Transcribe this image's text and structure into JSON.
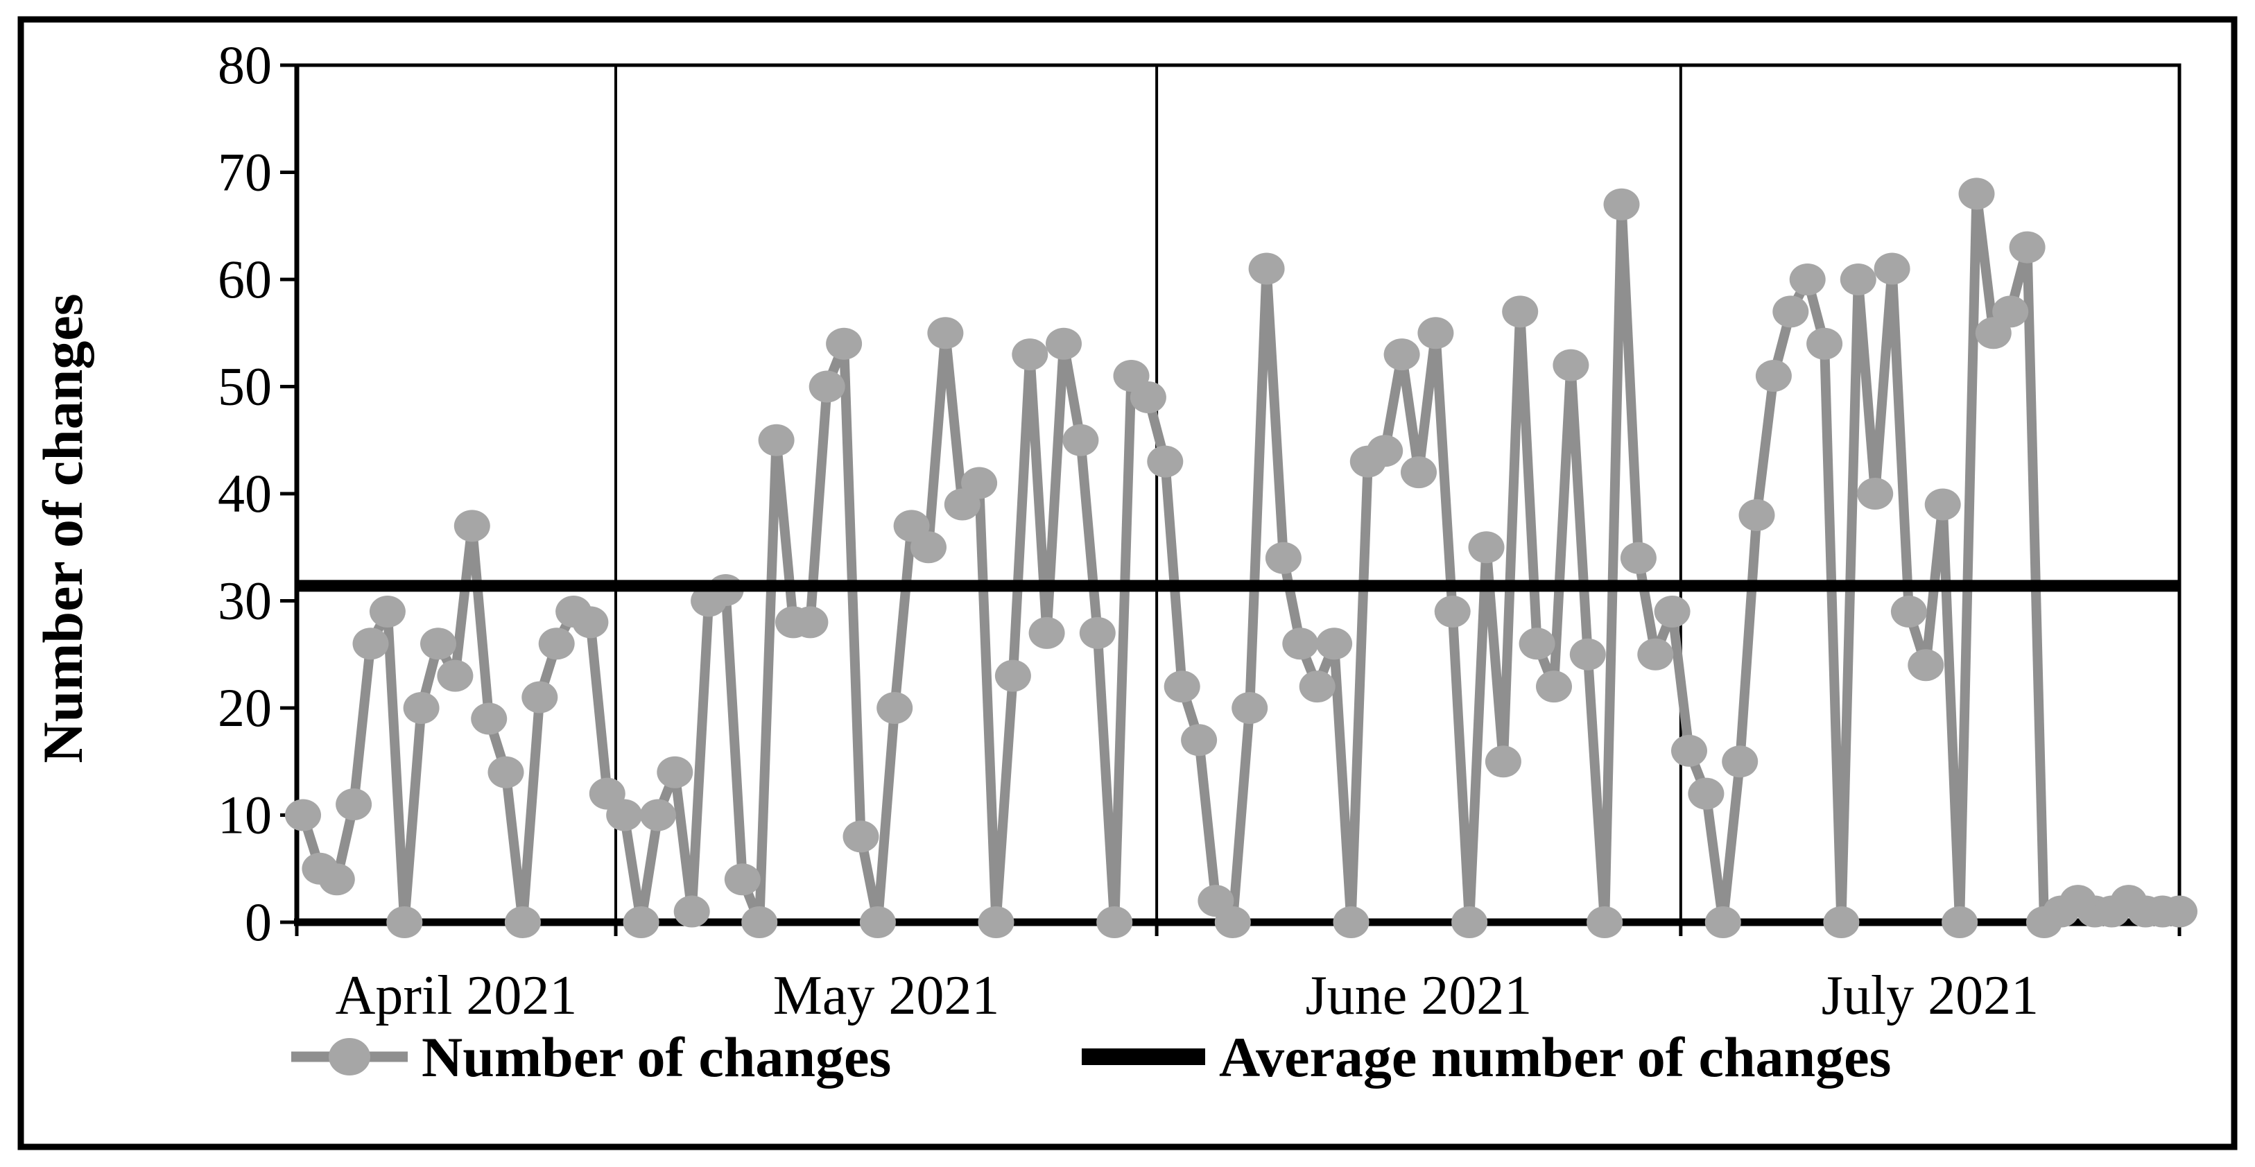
{
  "figure": {
    "background": "#ffffff",
    "frame_color": "#000000",
    "axis_color": "#000000"
  },
  "y_axis": {
    "title": "Number of changes",
    "tick_labels": [
      "0",
      "10",
      "20",
      "30",
      "40",
      "50",
      "60",
      "70",
      "80"
    ],
    "min": 0,
    "max": 80
  },
  "x_axis": {
    "month_labels": [
      "April 2021",
      "May 2021",
      "June 2021",
      "July 2021"
    ]
  },
  "legend": {
    "items": [
      {
        "label": "Number of changes",
        "type": "line-marker",
        "line_color": "#8f8f8f",
        "marker_color": "#a6a6a6"
      },
      {
        "label": "Average number of changes",
        "type": "line",
        "line_color": "#000000"
      }
    ]
  },
  "chart_data": {
    "type": "line",
    "title": "",
    "xlabel": "",
    "ylabel": "Number of changes",
    "ylim": [
      0,
      80
    ],
    "y_ticks": [
      0,
      10,
      20,
      30,
      40,
      50,
      60,
      70,
      80
    ],
    "grid": "vertical-month-separators",
    "legend_position": "bottom",
    "x_group_labels": [
      "April 2021",
      "May 2021",
      "June 2021",
      "July 2021"
    ],
    "month_boundaries_after_index": [
      18,
      50,
      81
    ],
    "series": [
      {
        "name": "Number of changes",
        "color": "#8f8f8f",
        "marker_color": "#a6a6a6",
        "values": [
          10,
          5,
          4,
          11,
          26,
          29,
          0,
          20,
          26,
          23,
          37,
          19,
          14,
          0,
          21,
          26,
          29,
          28,
          12,
          10,
          0,
          10,
          14,
          1,
          30,
          31,
          4,
          0,
          45,
          28,
          28,
          50,
          54,
          8,
          0,
          20,
          37,
          35,
          55,
          39,
          41,
          0,
          23,
          53,
          27,
          54,
          45,
          27,
          0,
          51,
          49,
          43,
          22,
          17,
          2,
          0,
          20,
          61,
          34,
          26,
          22,
          26,
          0,
          43,
          44,
          53,
          42,
          55,
          29,
          0,
          35,
          15,
          57,
          26,
          22,
          52,
          25,
          0,
          67,
          34,
          25,
          29,
          16,
          12,
          0,
          15,
          38,
          51,
          57,
          60,
          54,
          0,
          60,
          40,
          61,
          29,
          24,
          39,
          0,
          68,
          55,
          57,
          63,
          0,
          1,
          2,
          1,
          1,
          2,
          1,
          1,
          1
        ]
      },
      {
        "name": "Average number of changes",
        "type": "hline",
        "color": "#000000",
        "value": 31.4
      }
    ]
  }
}
